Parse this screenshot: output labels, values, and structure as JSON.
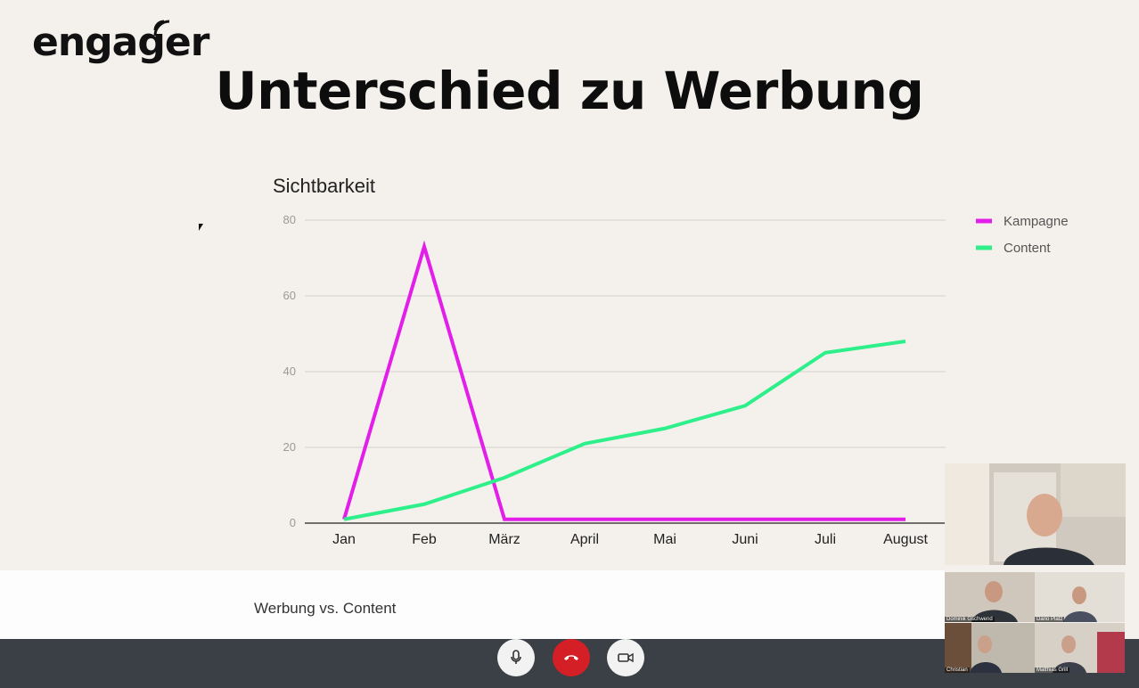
{
  "slide": {
    "logo_text": "engager",
    "title": "Unterschied zu Werbung",
    "caption": "Werbung vs. Content"
  },
  "chart_data": {
    "type": "line",
    "title": "Sichtbarkeit",
    "categories": [
      "Jan",
      "Feb",
      "März",
      "April",
      "Mai",
      "Juni",
      "Juli",
      "August"
    ],
    "ylim": [
      0,
      80
    ],
    "yticks": [
      "0",
      "20",
      "40",
      "60",
      "80"
    ],
    "grid": true,
    "legend": "right",
    "series": [
      {
        "name": "Kampagne",
        "color": "#e21ee8",
        "values": [
          1,
          73,
          1,
          1,
          1,
          1,
          1,
          1
        ]
      },
      {
        "name": "Content",
        "color": "#2ef08a",
        "values": [
          1,
          5,
          12,
          21,
          25,
          31,
          45,
          48
        ]
      }
    ]
  },
  "call": {
    "participants": [
      {
        "name": "Dominik Gschwend"
      },
      {
        "name": "Dario Platz"
      },
      {
        "name": "Christian"
      },
      {
        "name": "Matthias Grill"
      }
    ]
  },
  "toolbar": {
    "mic_icon": "microphone-icon",
    "hangup_icon": "hangup-icon",
    "camera_icon": "camera-icon",
    "hangup_color": "#d31f25"
  }
}
